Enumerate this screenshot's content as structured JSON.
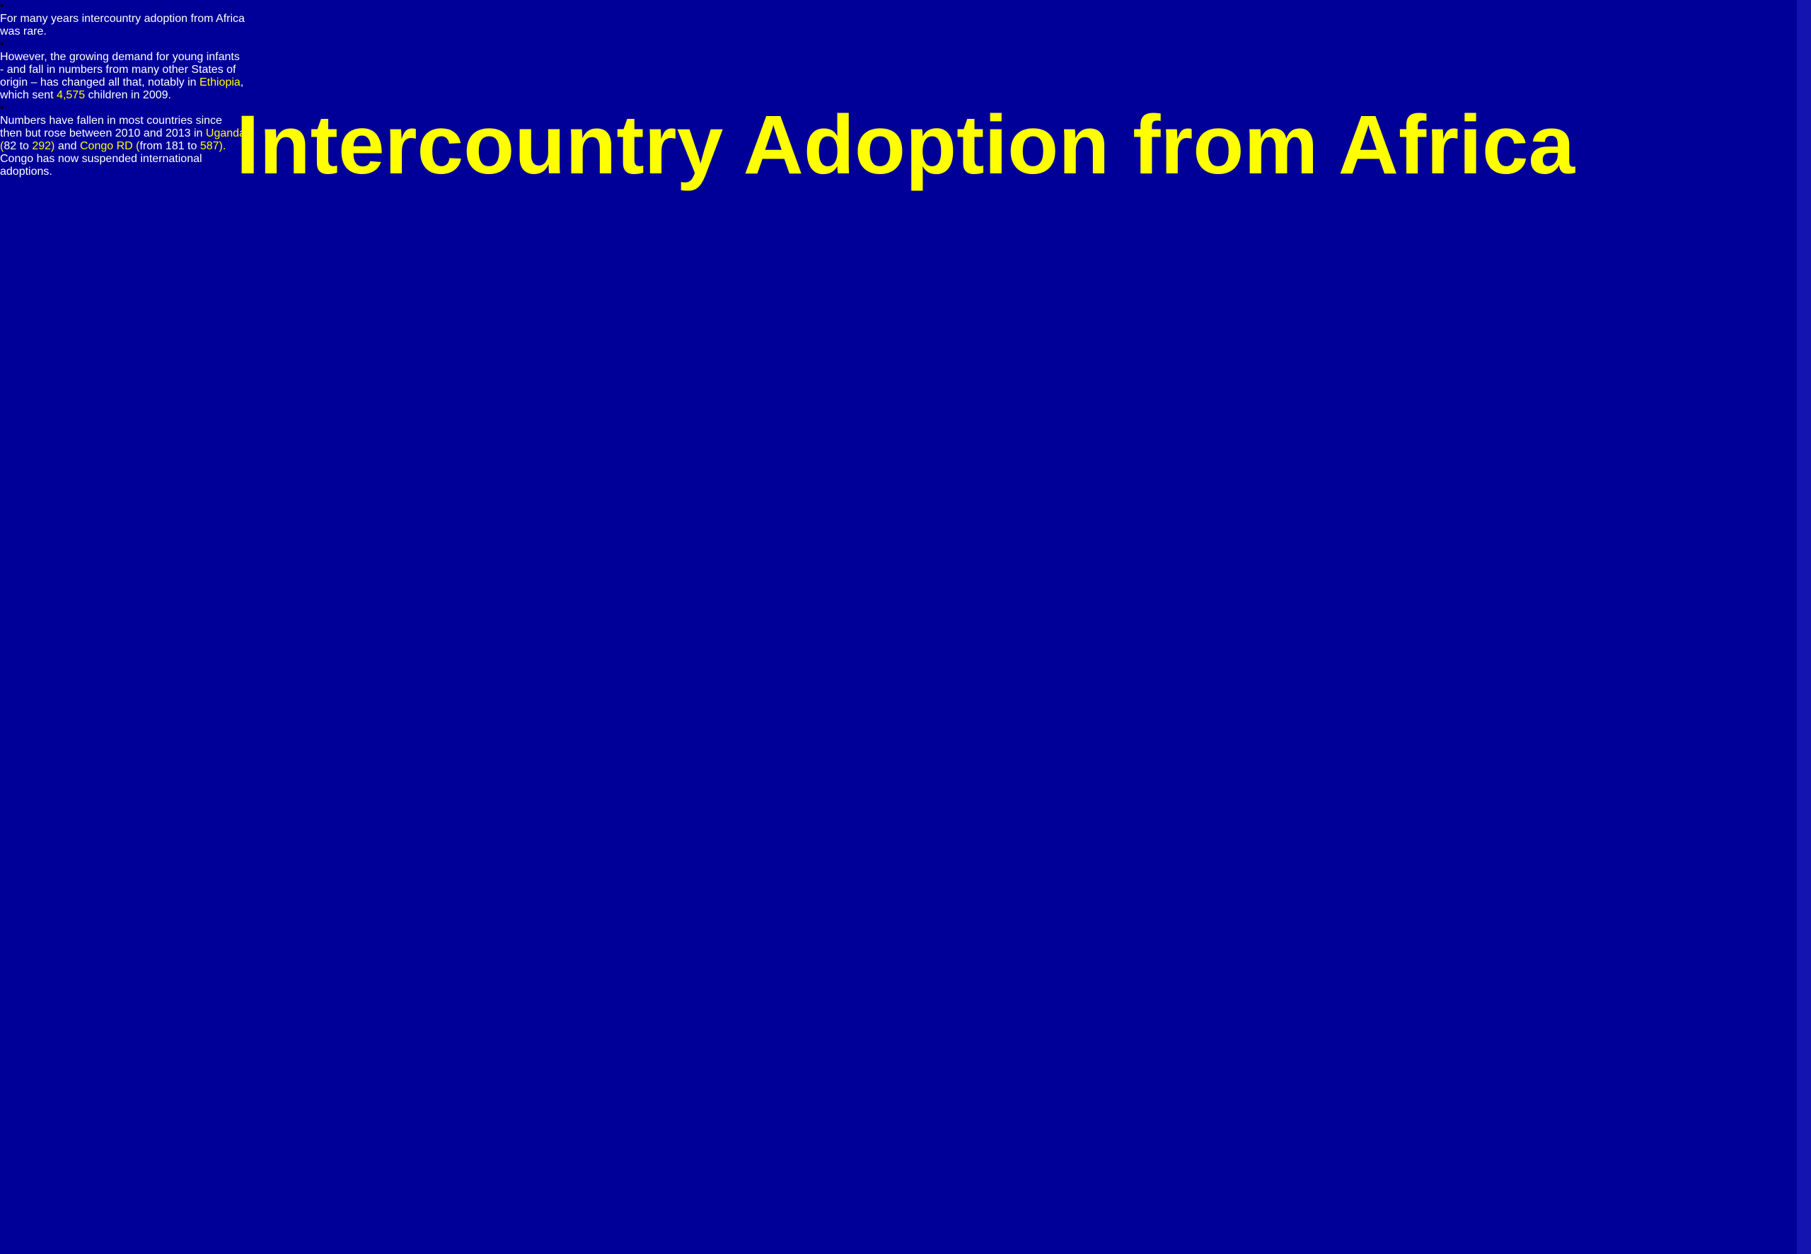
{
  "title": "Intercountry Adoption from Africa",
  "title_color": "#ffff00",
  "background": "#000099",
  "bullets": [
    {
      "marker": "•",
      "lines": [
        [
          {
            "text": "For many years intercountry adoption from Africa",
            "color": "#ffffff"
          }
        ],
        [
          {
            "text": "was rare.",
            "color": "#ffffff"
          }
        ]
      ]
    },
    {
      "marker": "•",
      "lines": [
        [
          {
            "text": "However, the growing demand for young infants",
            "color": "#ffffff"
          }
        ],
        [
          {
            "text": "- and fall in numbers from many other States of",
            "color": "#ffffff"
          }
        ],
        [
          {
            "text": "origin – has changed all that, notably in ",
            "color": "#ffffff"
          },
          {
            "text": "Ethiopia",
            "color": "#ffff00"
          },
          {
            "text": ",",
            "color": "#ffffff"
          }
        ],
        [
          {
            "text": "which sent ",
            "color": "#ffffff"
          },
          {
            "text": "4,575",
            "color": "#ffff00"
          },
          {
            "text": " children in 2009.",
            "color": "#ffffff"
          }
        ]
      ]
    },
    {
      "marker": "•",
      "lines": [
        [
          {
            "text": "Numbers have fallen in most countries since",
            "color": "#ffffff"
          }
        ],
        [
          {
            "text": "then but rose between 2010 and 2013 in ",
            "color": "#ffffff"
          },
          {
            "text": "Uganda",
            "color": "#ffff00"
          }
        ],
        [
          {
            "text": "(",
            "color": "#ffff00"
          },
          {
            "text": "82 to ",
            "color": "#ffffff"
          },
          {
            "text": "292)",
            "color": "#ffff00"
          },
          {
            "text": " and ",
            "color": "#ffffff"
          },
          {
            "text": "Congo RD (",
            "color": "#ffff00"
          },
          {
            "text": "from 181 to ",
            "color": "#ffffff"
          },
          {
            "text": "587).",
            "color": "#ffff00"
          }
        ],
        [
          {
            "text": "Congo has now suspended international",
            "color": "#ffffff"
          }
        ],
        [
          {
            "text": "adoptions.",
            "color": "#ffffff"
          }
        ]
      ]
    }
  ]
}
